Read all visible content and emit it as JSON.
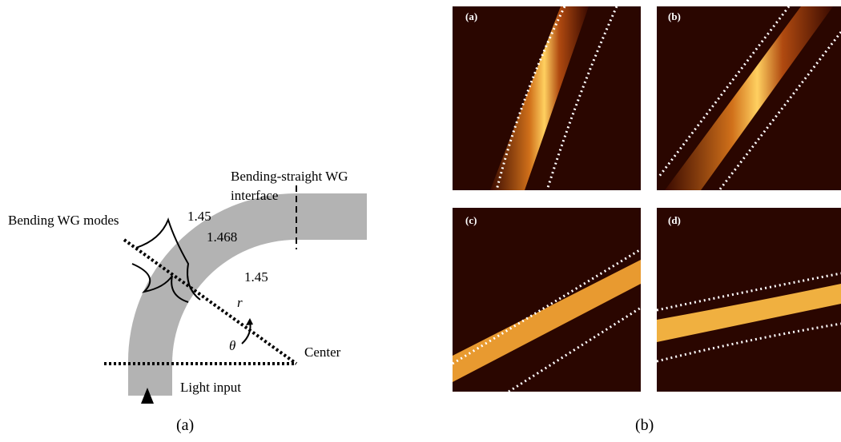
{
  "diagram": {
    "labels": {
      "bend_interface": "Bending-straight WG",
      "interface": "interface",
      "modes": "Bending WG modes",
      "n_outer": "1.45",
      "n_core": "1.468",
      "n_inner": "1.45",
      "radius": "r",
      "angle": "θ",
      "center": "Center",
      "input": "Light input"
    },
    "caption": "(a)"
  },
  "images": {
    "panels": [
      "(a)",
      "(b)",
      "(c)",
      "(d)"
    ],
    "caption": "(b)"
  }
}
